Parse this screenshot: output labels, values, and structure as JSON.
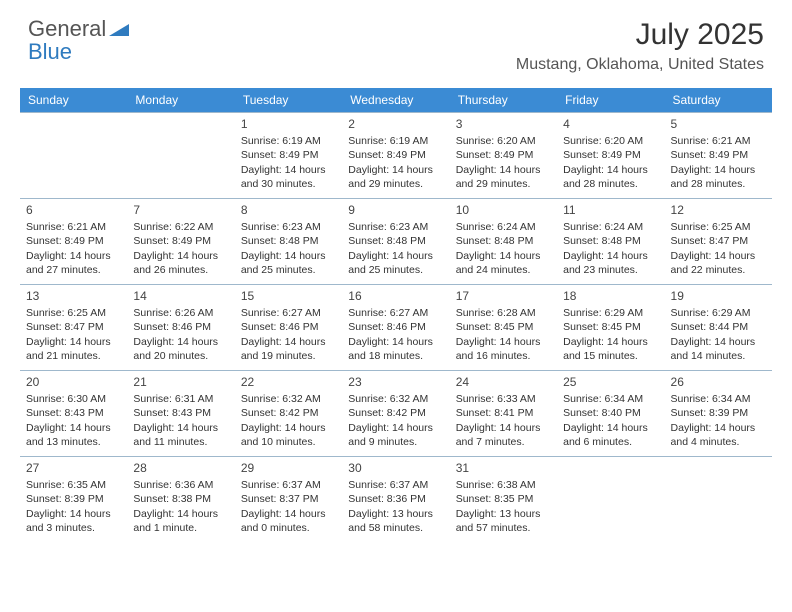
{
  "logo": {
    "word1": "General",
    "word2": "Blue"
  },
  "title": "July 2025",
  "location": "Mustang, Oklahoma, United States",
  "colors": {
    "header_bg": "#3b8bd4",
    "header_text": "#ffffff",
    "border": "#9fb8cc",
    "body_text": "#333333",
    "logo_blue": "#2f7bbf"
  },
  "day_headers": [
    "Sunday",
    "Monday",
    "Tuesday",
    "Wednesday",
    "Thursday",
    "Friday",
    "Saturday"
  ],
  "weeks": [
    [
      null,
      null,
      {
        "n": "1",
        "sunrise": "6:19 AM",
        "sunset": "8:49 PM",
        "daylight": "14 hours and 30 minutes."
      },
      {
        "n": "2",
        "sunrise": "6:19 AM",
        "sunset": "8:49 PM",
        "daylight": "14 hours and 29 minutes."
      },
      {
        "n": "3",
        "sunrise": "6:20 AM",
        "sunset": "8:49 PM",
        "daylight": "14 hours and 29 minutes."
      },
      {
        "n": "4",
        "sunrise": "6:20 AM",
        "sunset": "8:49 PM",
        "daylight": "14 hours and 28 minutes."
      },
      {
        "n": "5",
        "sunrise": "6:21 AM",
        "sunset": "8:49 PM",
        "daylight": "14 hours and 28 minutes."
      }
    ],
    [
      {
        "n": "6",
        "sunrise": "6:21 AM",
        "sunset": "8:49 PM",
        "daylight": "14 hours and 27 minutes."
      },
      {
        "n": "7",
        "sunrise": "6:22 AM",
        "sunset": "8:49 PM",
        "daylight": "14 hours and 26 minutes."
      },
      {
        "n": "8",
        "sunrise": "6:23 AM",
        "sunset": "8:48 PM",
        "daylight": "14 hours and 25 minutes."
      },
      {
        "n": "9",
        "sunrise": "6:23 AM",
        "sunset": "8:48 PM",
        "daylight": "14 hours and 25 minutes."
      },
      {
        "n": "10",
        "sunrise": "6:24 AM",
        "sunset": "8:48 PM",
        "daylight": "14 hours and 24 minutes."
      },
      {
        "n": "11",
        "sunrise": "6:24 AM",
        "sunset": "8:48 PM",
        "daylight": "14 hours and 23 minutes."
      },
      {
        "n": "12",
        "sunrise": "6:25 AM",
        "sunset": "8:47 PM",
        "daylight": "14 hours and 22 minutes."
      }
    ],
    [
      {
        "n": "13",
        "sunrise": "6:25 AM",
        "sunset": "8:47 PM",
        "daylight": "14 hours and 21 minutes."
      },
      {
        "n": "14",
        "sunrise": "6:26 AM",
        "sunset": "8:46 PM",
        "daylight": "14 hours and 20 minutes."
      },
      {
        "n": "15",
        "sunrise": "6:27 AM",
        "sunset": "8:46 PM",
        "daylight": "14 hours and 19 minutes."
      },
      {
        "n": "16",
        "sunrise": "6:27 AM",
        "sunset": "8:46 PM",
        "daylight": "14 hours and 18 minutes."
      },
      {
        "n": "17",
        "sunrise": "6:28 AM",
        "sunset": "8:45 PM",
        "daylight": "14 hours and 16 minutes."
      },
      {
        "n": "18",
        "sunrise": "6:29 AM",
        "sunset": "8:45 PM",
        "daylight": "14 hours and 15 minutes."
      },
      {
        "n": "19",
        "sunrise": "6:29 AM",
        "sunset": "8:44 PM",
        "daylight": "14 hours and 14 minutes."
      }
    ],
    [
      {
        "n": "20",
        "sunrise": "6:30 AM",
        "sunset": "8:43 PM",
        "daylight": "14 hours and 13 minutes."
      },
      {
        "n": "21",
        "sunrise": "6:31 AM",
        "sunset": "8:43 PM",
        "daylight": "14 hours and 11 minutes."
      },
      {
        "n": "22",
        "sunrise": "6:32 AM",
        "sunset": "8:42 PM",
        "daylight": "14 hours and 10 minutes."
      },
      {
        "n": "23",
        "sunrise": "6:32 AM",
        "sunset": "8:42 PM",
        "daylight": "14 hours and 9 minutes."
      },
      {
        "n": "24",
        "sunrise": "6:33 AM",
        "sunset": "8:41 PM",
        "daylight": "14 hours and 7 minutes."
      },
      {
        "n": "25",
        "sunrise": "6:34 AM",
        "sunset": "8:40 PM",
        "daylight": "14 hours and 6 minutes."
      },
      {
        "n": "26",
        "sunrise": "6:34 AM",
        "sunset": "8:39 PM",
        "daylight": "14 hours and 4 minutes."
      }
    ],
    [
      {
        "n": "27",
        "sunrise": "6:35 AM",
        "sunset": "8:39 PM",
        "daylight": "14 hours and 3 minutes."
      },
      {
        "n": "28",
        "sunrise": "6:36 AM",
        "sunset": "8:38 PM",
        "daylight": "14 hours and 1 minute."
      },
      {
        "n": "29",
        "sunrise": "6:37 AM",
        "sunset": "8:37 PM",
        "daylight": "14 hours and 0 minutes."
      },
      {
        "n": "30",
        "sunrise": "6:37 AM",
        "sunset": "8:36 PM",
        "daylight": "13 hours and 58 minutes."
      },
      {
        "n": "31",
        "sunrise": "6:38 AM",
        "sunset": "8:35 PM",
        "daylight": "13 hours and 57 minutes."
      },
      null,
      null
    ]
  ],
  "labels": {
    "sunrise": "Sunrise:",
    "sunset": "Sunset:",
    "daylight": "Daylight:"
  }
}
